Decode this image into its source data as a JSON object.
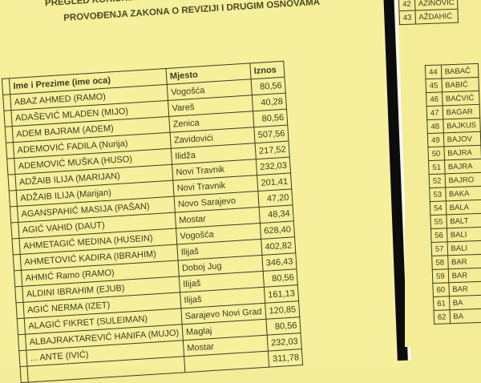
{
  "left_page": {
    "title_line1": "PREGLED KORISNIKA KOJIMA ...",
    "title_line2": "PROVOĐENJA ZAKONA O REVIZIJI I DRUGIM OSNOVAMA",
    "headers": {
      "name": "Ime i Prezime (ime oca)",
      "city": "Mjesto",
      "amount": "Iznos"
    },
    "rows": [
      {
        "name": "ABAZ AHMED (RAMO)",
        "city": "Vogošća",
        "amount": "80,56"
      },
      {
        "name": "ADAŠEVIĆ MLADEN (MIJO)",
        "city": "Vareš",
        "amount": "40,28"
      },
      {
        "name": "ADEM BAJRAM (ADEM)",
        "city": "Zenica",
        "amount": "80,56"
      },
      {
        "name": "ADEMOVIĆ FADILA (Nurija)",
        "city": "Zavidovići",
        "amount": "507,56"
      },
      {
        "name": "ADEMOVIĆ MUŠKA (HUSO)",
        "city": "Ilidža",
        "amount": "217,52"
      },
      {
        "name": "ADŽAIB ILIJA (MARIJAN)",
        "city": "Novi Travnik",
        "amount": "232,03"
      },
      {
        "name": "ADŽAIB ILIJA (Marijan)",
        "city": "Novi Travnik",
        "amount": "201,41"
      },
      {
        "name": "AGANSPAHIĆ MASIJA (PAŠAN)",
        "city": "Novo Sarajevo",
        "amount": "47,20"
      },
      {
        "name": "AGIĆ VAHID (DAUT)",
        "city": "Mostar",
        "amount": "48,34"
      },
      {
        "name": "AHMETAGIĆ MEDINA (HUSEIN)",
        "city": "Vogošća",
        "amount": "628,40"
      },
      {
        "name": "AHMETOVIĆ KADIRA (IBRAHIM)",
        "city": "Ilijaš",
        "amount": "402,82"
      },
      {
        "name": "AHMIĆ Ramo (RAMO)",
        "city": "Doboj Jug",
        "amount": "346,43"
      },
      {
        "name": "ALDINI IBRAHIM (EJUB)",
        "city": "Ilijaš",
        "amount": "80,56"
      },
      {
        "name": "AGIĆ NERMA (IZET)",
        "city": "Ilijaš",
        "amount": "161,13"
      },
      {
        "name": "ALAGIĆ FIKRET (SULEIMAN)",
        "city": "Sarajevo Novi Grad",
        "amount": "120,85"
      },
      {
        "name": "ALBAJRAKTAREVIĆ HANIFA (MUJO)",
        "city": "Maglaj",
        "amount": "80,56"
      },
      {
        "name": "... ANTE (IVIĆ)",
        "city": "Mostar",
        "amount": "232,03"
      },
      {
        "name": "",
        "city": "",
        "amount": "311,78"
      }
    ]
  },
  "right_page": {
    "top_rows": [
      {
        "num": "42",
        "name": "AZINOVIĆ"
      },
      {
        "num": "43",
        "name": "AŽDAHIĆ"
      }
    ],
    "rows": [
      {
        "num": "44",
        "name": "BABAČ"
      },
      {
        "num": "45",
        "name": "BABIĆ"
      },
      {
        "num": "46",
        "name": "BAĆVIĆ"
      },
      {
        "num": "47",
        "name": "BAGAR"
      },
      {
        "num": "48",
        "name": "BAJKUS"
      },
      {
        "num": "49",
        "name": "BAJOV"
      },
      {
        "num": "50",
        "name": "BAJRA"
      },
      {
        "num": "51",
        "name": "BAJRA"
      },
      {
        "num": "52",
        "name": "BAJRO"
      },
      {
        "num": "53",
        "name": "BAKA"
      },
      {
        "num": "54",
        "name": "BALA"
      },
      {
        "num": "55",
        "name": "BALT"
      },
      {
        "num": "56",
        "name": "BALI"
      },
      {
        "num": "57",
        "name": "BALI"
      },
      {
        "num": "58",
        "name": "BAR"
      },
      {
        "num": "59",
        "name": "BAR"
      },
      {
        "num": "60",
        "name": "BAR"
      },
      {
        "num": "61",
        "name": "BA"
      },
      {
        "num": "62",
        "name": "BA"
      }
    ]
  },
  "colors": {
    "paper": "#f6ef9c",
    "ink": "#3c3c1c",
    "divider": "#0c0c0c"
  }
}
